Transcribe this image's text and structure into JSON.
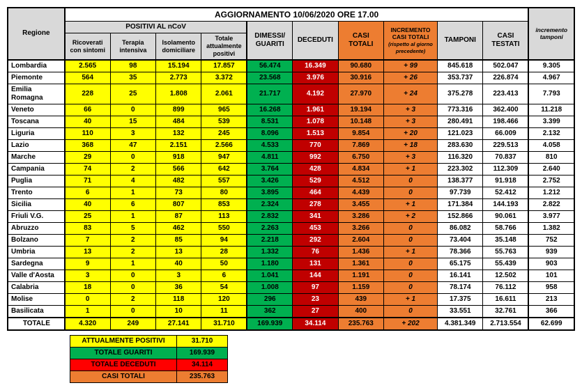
{
  "title": "AGGIORNAMENTO 10/06/2020 ORE 17.00",
  "headers": {
    "regione": "Regione",
    "positivi_group": "POSITIVI AL nCoV",
    "ricoverati": "Ricoverati con sintomi",
    "terapia": "Terapia intensiva",
    "isolamento": "Isolamento domiciliare",
    "tot_positivi": "Totale attualmente positivi",
    "dimessi": "DIMESSI/ GUARITI",
    "deceduti": "DECEDUTI",
    "casi_totali": "CASI TOTALI",
    "incremento_casi": "INCREMENTO CASI  TOTALI",
    "incremento_sub": "(rispetto al giorno precedente)",
    "tamponi": "TAMPONI",
    "casi_testati": "CASI TESTATI",
    "inc_tamponi": "incremento tamponi"
  },
  "rows": [
    {
      "region": "Lombardia",
      "ric": "2.565",
      "ter": "98",
      "iso": "15.194",
      "tot": "17.857",
      "dim": "56.474",
      "dec": "16.349",
      "casi": "90.680",
      "inc": "+ 99",
      "tamp": "845.618",
      "test": "502.047",
      "itamp": "9.305"
    },
    {
      "region": "Piemonte",
      "ric": "564",
      "ter": "35",
      "iso": "2.773",
      "tot": "3.372",
      "dim": "23.568",
      "dec": "3.976",
      "casi": "30.916",
      "inc": "+ 26",
      "tamp": "353.737",
      "test": "226.874",
      "itamp": "4.967"
    },
    {
      "region": "Emilia Romagna",
      "ric": "228",
      "ter": "25",
      "iso": "1.808",
      "tot": "2.061",
      "dim": "21.717",
      "dec": "4.192",
      "casi": "27.970",
      "inc": "+ 24",
      "tamp": "375.278",
      "test": "223.413",
      "itamp": "7.793"
    },
    {
      "region": "Veneto",
      "ric": "66",
      "ter": "0",
      "iso": "899",
      "tot": "965",
      "dim": "16.268",
      "dec": "1.961",
      "casi": "19.194",
      "inc": "+ 3",
      "tamp": "773.316",
      "test": "362.400",
      "itamp": "11.218"
    },
    {
      "region": "Toscana",
      "ric": "40",
      "ter": "15",
      "iso": "484",
      "tot": "539",
      "dim": "8.531",
      "dec": "1.078",
      "casi": "10.148",
      "inc": "+ 3",
      "tamp": "280.491",
      "test": "198.466",
      "itamp": "3.399"
    },
    {
      "region": "Liguria",
      "ric": "110",
      "ter": "3",
      "iso": "132",
      "tot": "245",
      "dim": "8.096",
      "dec": "1.513",
      "casi": "9.854",
      "inc": "+ 20",
      "tamp": "121.023",
      "test": "66.009",
      "itamp": "2.132"
    },
    {
      "region": "Lazio",
      "ric": "368",
      "ter": "47",
      "iso": "2.151",
      "tot": "2.566",
      "dim": "4.533",
      "dec": "770",
      "casi": "7.869",
      "inc": "+ 18",
      "tamp": "283.630",
      "test": "229.513",
      "itamp": "4.058"
    },
    {
      "region": "Marche",
      "ric": "29",
      "ter": "0",
      "iso": "918",
      "tot": "947",
      "dim": "4.811",
      "dec": "992",
      "casi": "6.750",
      "inc": "+ 3",
      "tamp": "116.320",
      "test": "70.837",
      "itamp": "810"
    },
    {
      "region": "Campania",
      "ric": "74",
      "ter": "2",
      "iso": "566",
      "tot": "642",
      "dim": "3.764",
      "dec": "428",
      "casi": "4.834",
      "inc": "+ 1",
      "tamp": "223.302",
      "test": "112.309",
      "itamp": "2.640"
    },
    {
      "region": "Puglia",
      "ric": "71",
      "ter": "4",
      "iso": "482",
      "tot": "557",
      "dim": "3.426",
      "dec": "529",
      "casi": "4.512",
      "inc": "0",
      "tamp": "138.377",
      "test": "91.918",
      "itamp": "2.752"
    },
    {
      "region": "Trento",
      "ric": "6",
      "ter": "1",
      "iso": "73",
      "tot": "80",
      "dim": "3.895",
      "dec": "464",
      "casi": "4.439",
      "inc": "0",
      "tamp": "97.739",
      "test": "52.412",
      "itamp": "1.212"
    },
    {
      "region": "Sicilia",
      "ric": "40",
      "ter": "6",
      "iso": "807",
      "tot": "853",
      "dim": "2.324",
      "dec": "278",
      "casi": "3.455",
      "inc": "+ 1",
      "tamp": "171.384",
      "test": "144.193",
      "itamp": "2.822"
    },
    {
      "region": "Friuli V.G.",
      "ric": "25",
      "ter": "1",
      "iso": "87",
      "tot": "113",
      "dim": "2.832",
      "dec": "341",
      "casi": "3.286",
      "inc": "+ 2",
      "tamp": "152.866",
      "test": "90.061",
      "itamp": "3.977"
    },
    {
      "region": "Abruzzo",
      "ric": "83",
      "ter": "5",
      "iso": "462",
      "tot": "550",
      "dim": "2.263",
      "dec": "453",
      "casi": "3.266",
      "inc": "0",
      "tamp": "86.082",
      "test": "58.766",
      "itamp": "1.382"
    },
    {
      "region": "Bolzano",
      "ric": "7",
      "ter": "2",
      "iso": "85",
      "tot": "94",
      "dim": "2.218",
      "dec": "292",
      "casi": "2.604",
      "inc": "0",
      "tamp": "73.404",
      "test": "35.148",
      "itamp": "752"
    },
    {
      "region": "Umbria",
      "ric": "13",
      "ter": "2",
      "iso": "13",
      "tot": "28",
      "dim": "1.332",
      "dec": "76",
      "casi": "1.436",
      "inc": "+ 1",
      "tamp": "78.366",
      "test": "55.763",
      "itamp": "939"
    },
    {
      "region": "Sardegna",
      "ric": "9",
      "ter": "1",
      "iso": "40",
      "tot": "50",
      "dim": "1.180",
      "dec": "131",
      "casi": "1.361",
      "inc": "0",
      "tamp": "65.175",
      "test": "55.439",
      "itamp": "903"
    },
    {
      "region": "Valle d'Aosta",
      "ric": "3",
      "ter": "0",
      "iso": "3",
      "tot": "6",
      "dim": "1.041",
      "dec": "144",
      "casi": "1.191",
      "inc": "0",
      "tamp": "16.141",
      "test": "12.502",
      "itamp": "101"
    },
    {
      "region": "Calabria",
      "ric": "18",
      "ter": "0",
      "iso": "36",
      "tot": "54",
      "dim": "1.008",
      "dec": "97",
      "casi": "1.159",
      "inc": "0",
      "tamp": "78.174",
      "test": "76.112",
      "itamp": "958"
    },
    {
      "region": "Molise",
      "ric": "0",
      "ter": "2",
      "iso": "118",
      "tot": "120",
      "dim": "296",
      "dec": "23",
      "casi": "439",
      "inc": "+ 1",
      "tamp": "17.375",
      "test": "16.611",
      "itamp": "213"
    },
    {
      "region": "Basilicata",
      "ric": "1",
      "ter": "0",
      "iso": "10",
      "tot": "11",
      "dim": "362",
      "dec": "27",
      "casi": "400",
      "inc": "0",
      "tamp": "33.551",
      "test": "32.761",
      "itamp": "366"
    }
  ],
  "total": {
    "region": "TOTALE",
    "ric": "4.320",
    "ter": "249",
    "iso": "27.141",
    "tot": "31.710",
    "dim": "169.939",
    "dec": "34.114",
    "casi": "235.763",
    "inc": "+ 202",
    "tamp": "4.381.349",
    "test": "2.713.554",
    "itamp": "62.699"
  },
  "summary": {
    "att_pos_label": "ATTUALMENTE POSITIVI",
    "att_pos_val": "31.710",
    "guariti_label": "TOTALE GUARITI",
    "guariti_val": "169.939",
    "deceduti_label": "TOTALE DECEDUTI",
    "deceduti_val": "34.114",
    "casi_label": "CASI TOTALI",
    "casi_val": "235.763"
  },
  "colors": {
    "yellow": "#ffff00",
    "green": "#00b050",
    "red": "#ff0000",
    "red_dark": "#c00000",
    "orange": "#ed7d31",
    "grey": "#d9d9d9",
    "white": "#ffffff"
  }
}
